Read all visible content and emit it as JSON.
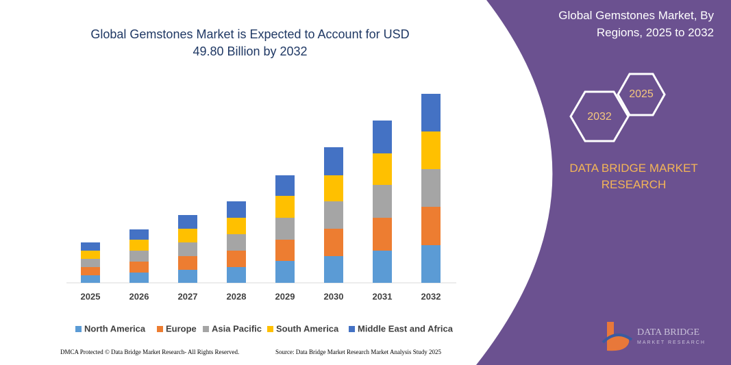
{
  "chart_data": {
    "type": "bar",
    "stacked": true,
    "title": "Global Gemstones Market is Expected to Account for USD 49.80 Billion by 2032",
    "categories": [
      "2025",
      "2026",
      "2027",
      "2028",
      "2029",
      "2030",
      "2031",
      "2032"
    ],
    "series": [
      {
        "name": "North America",
        "color": "#5b9bd5",
        "values": [
          11,
          15,
          19,
          23,
          32,
          39,
          47,
          55
        ]
      },
      {
        "name": "Europe",
        "color": "#ed7d31",
        "values": [
          12,
          16,
          20,
          24,
          31,
          40,
          48,
          56
        ]
      },
      {
        "name": "Asia Pacific",
        "color": "#a5a5a5",
        "values": [
          12,
          16,
          20,
          24,
          32,
          40,
          48,
          55
        ]
      },
      {
        "name": "South America",
        "color": "#ffc000",
        "values": [
          12,
          16,
          20,
          24,
          32,
          38,
          46,
          55
        ]
      },
      {
        "name": "Middle East and Africa",
        "color": "#4472c4",
        "values": [
          12,
          15,
          20,
          24,
          30,
          41,
          48,
          55
        ]
      }
    ]
  },
  "side_panel": {
    "title": "Global Gemstones Market, By Regions, 2025 to 2032",
    "hexagons": [
      "2025",
      "2032"
    ],
    "brand": "DATA BRIDGE MARKET RESEARCH",
    "logo": {
      "name": "DATA BRIDGE",
      "tagline": "MARKET RESEARCH"
    }
  },
  "footer": {
    "left": "DMCA Protected © Data Bridge Market Research- All Rights Reserved.",
    "right": "Source: Data Bridge Market Research Market Analysis Study 2025"
  }
}
